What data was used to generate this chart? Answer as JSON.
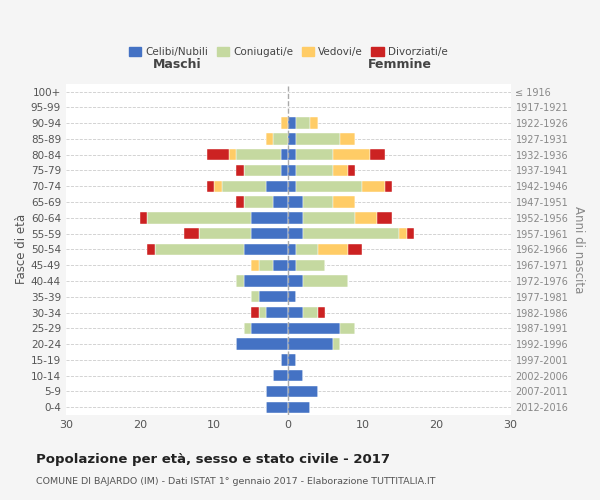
{
  "age_groups": [
    "100+",
    "95-99",
    "90-94",
    "85-89",
    "80-84",
    "75-79",
    "70-74",
    "65-69",
    "60-64",
    "55-59",
    "50-54",
    "45-49",
    "40-44",
    "35-39",
    "30-34",
    "25-29",
    "20-24",
    "15-19",
    "10-14",
    "5-9",
    "0-4"
  ],
  "birth_years": [
    "≤ 1916",
    "1917-1921",
    "1922-1926",
    "1927-1931",
    "1932-1936",
    "1937-1941",
    "1942-1946",
    "1947-1951",
    "1952-1956",
    "1957-1961",
    "1962-1966",
    "1967-1971",
    "1972-1976",
    "1977-1981",
    "1982-1986",
    "1987-1991",
    "1992-1996",
    "1997-2001",
    "2002-2006",
    "2007-2011",
    "2012-2016"
  ],
  "colors": {
    "celibe": "#4472C4",
    "coniugato": "#C5D9A0",
    "vedovo": "#FFCC66",
    "divorziato": "#CC2222"
  },
  "males": {
    "celibe": [
      0,
      0,
      0,
      0,
      1,
      1,
      3,
      2,
      5,
      5,
      6,
      2,
      6,
      4,
      3,
      5,
      7,
      1,
      2,
      3,
      3
    ],
    "coniugato": [
      0,
      0,
      0,
      2,
      6,
      5,
      6,
      4,
      14,
      7,
      12,
      2,
      1,
      1,
      1,
      1,
      0,
      0,
      0,
      0,
      0
    ],
    "vedovo": [
      0,
      0,
      1,
      1,
      1,
      0,
      1,
      0,
      0,
      0,
      0,
      1,
      0,
      0,
      0,
      0,
      0,
      0,
      0,
      0,
      0
    ],
    "divorziato": [
      0,
      0,
      0,
      0,
      3,
      1,
      1,
      1,
      1,
      2,
      1,
      0,
      0,
      0,
      1,
      0,
      0,
      0,
      0,
      0,
      0
    ]
  },
  "females": {
    "celibe": [
      0,
      0,
      1,
      1,
      1,
      1,
      1,
      2,
      2,
      2,
      1,
      1,
      2,
      1,
      2,
      7,
      6,
      1,
      2,
      4,
      3
    ],
    "coniugato": [
      0,
      0,
      2,
      6,
      5,
      5,
      9,
      4,
      7,
      13,
      3,
      4,
      6,
      0,
      2,
      2,
      1,
      0,
      0,
      0,
      0
    ],
    "vedovo": [
      0,
      0,
      1,
      2,
      5,
      2,
      3,
      3,
      3,
      1,
      4,
      0,
      0,
      0,
      0,
      0,
      0,
      0,
      0,
      0,
      0
    ],
    "divorziato": [
      0,
      0,
      0,
      0,
      2,
      1,
      1,
      0,
      2,
      1,
      2,
      0,
      0,
      0,
      1,
      0,
      0,
      0,
      0,
      0,
      0
    ]
  },
  "title": "Popolazione per età, sesso e stato civile - 2017",
  "subtitle": "COMUNE DI BAJARDO (IM) - Dati ISTAT 1° gennaio 2017 - Elaborazione TUTTITALIA.IT",
  "xlabel_left": "Maschi",
  "xlabel_right": "Femmine",
  "ylabel": "Fasce di età",
  "ylabel_right": "Anni di nascita",
  "xlim": 30,
  "legend_labels": [
    "Celibi/Nubili",
    "Coniugati/e",
    "Vedovi/e",
    "Divorziati/e"
  ],
  "bg_color": "#f5f5f5",
  "plot_bg_color": "#ffffff"
}
